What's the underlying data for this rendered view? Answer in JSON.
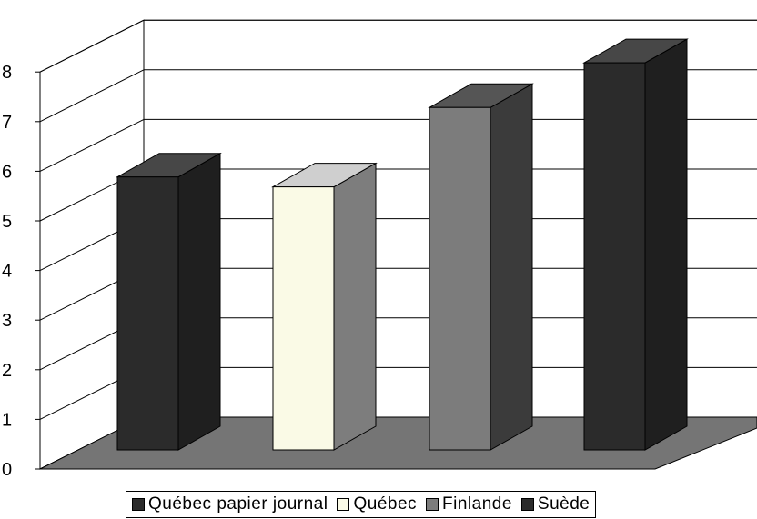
{
  "chart_data": {
    "type": "bar",
    "style": "3d-column",
    "categories": [
      "Québec papier journal",
      "Québec",
      "Finlande",
      "Suède"
    ],
    "values": [
      5.5,
      5.3,
      6.9,
      7.8
    ],
    "ylim": [
      0,
      8
    ],
    "yticks": [
      "0",
      "1",
      "2",
      "3",
      "4",
      "5",
      "6",
      "7",
      "8"
    ],
    "grid": true,
    "legend_position": "bottom",
    "colors": {
      "Québec papier journal": {
        "front": "#2b2b2b",
        "side": "#1f1f1f",
        "top": "#474747"
      },
      "Québec": {
        "front": "#fafae6",
        "side": "#7d7d7d",
        "top": "#cfcfcf"
      },
      "Finlande": {
        "front": "#7c7c7c",
        "side": "#3b3b3b",
        "top": "#555555"
      },
      "Suède": {
        "front": "#2b2b2b",
        "side": "#1f1f1f",
        "top": "#474747"
      }
    },
    "floor_color": "#757575",
    "gridline_color": "#000000"
  }
}
